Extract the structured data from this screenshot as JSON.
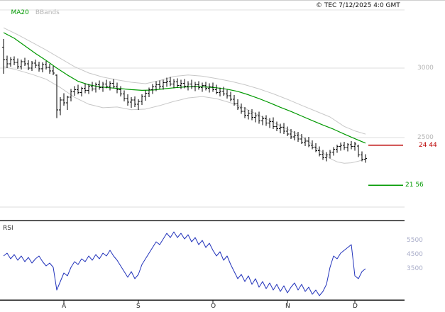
{
  "legend": {
    "ma": "MA20",
    "bands": "BBands"
  },
  "header": {
    "copyright": "© TEC 7/12/2025 4:0 GMT"
  },
  "chart_data": {
    "type": "candlestick",
    "title": "",
    "colors": {
      "grid": "#dcdcdc",
      "frame": "#e0e0e0",
      "bands": "#c8c8c8",
      "ma": "#009900",
      "candle": "#000000",
      "rsi": "#2233bb",
      "divider": "#1a1a1a",
      "resistance": "#bb0000",
      "support": "#009900"
    },
    "main": {
      "y_axis": {
        "visible_range": [
          1903,
          3484
        ],
        "gridline_spacing": 500
      },
      "price_gridlines": [
        3000,
        2500,
        2000
      ],
      "price_labels": [
        {
          "text": "3000",
          "value": 3000
        },
        {
          "text": "2500",
          "value": 2500
        }
      ],
      "levels": [
        {
          "text": "24 44",
          "value": 2444,
          "color": "#bb0000",
          "name": "resistance-level"
        },
        {
          "text": "21 56",
          "value": 2156,
          "color": "#009900",
          "name": "support-level"
        }
      ],
      "candles": [
        [
          3150,
          3210,
          2960,
          3060
        ],
        [
          3060,
          3090,
          3000,
          3030
        ],
        [
          3030,
          3080,
          3010,
          3060
        ],
        [
          3060,
          3085,
          3020,
          3040
        ],
        [
          3040,
          3070,
          2995,
          3010
        ],
        [
          3010,
          3060,
          2990,
          3045
        ],
        [
          3045,
          3075,
          3015,
          3030
        ],
        [
          3030,
          3055,
          2985,
          3000
        ],
        [
          3000,
          3050,
          2980,
          3035
        ],
        [
          3035,
          3060,
          3000,
          3020
        ],
        [
          3020,
          3045,
          2975,
          2995
        ],
        [
          2995,
          3040,
          2970,
          3025
        ],
        [
          3025,
          3050,
          2990,
          3005
        ],
        [
          3005,
          3030,
          2960,
          2980
        ],
        [
          2980,
          3015,
          2950,
          2965
        ],
        [
          2950,
          2955,
          2640,
          2700
        ],
        [
          2700,
          2790,
          2660,
          2770
        ],
        [
          2770,
          2820,
          2730,
          2750
        ],
        [
          2750,
          2800,
          2700,
          2790
        ],
        [
          2790,
          2850,
          2760,
          2830
        ],
        [
          2830,
          2870,
          2800,
          2845
        ],
        [
          2845,
          2880,
          2810,
          2825
        ],
        [
          2825,
          2865,
          2795,
          2855
        ],
        [
          2855,
          2890,
          2820,
          2840
        ],
        [
          2840,
          2885,
          2815,
          2870
        ],
        [
          2870,
          2900,
          2835,
          2850
        ],
        [
          2850,
          2895,
          2825,
          2880
        ],
        [
          2880,
          2910,
          2845,
          2860
        ],
        [
          2860,
          2900,
          2830,
          2885
        ],
        [
          2885,
          2915,
          2855,
          2870
        ],
        [
          2870,
          2905,
          2840,
          2890
        ],
        [
          2890,
          2920,
          2855,
          2865
        ],
        [
          2865,
          2895,
          2820,
          2845
        ],
        [
          2845,
          2870,
          2795,
          2815
        ],
        [
          2815,
          2840,
          2760,
          2780
        ],
        [
          2780,
          2810,
          2730,
          2755
        ],
        [
          2755,
          2790,
          2715,
          2770
        ],
        [
          2770,
          2795,
          2720,
          2740
        ],
        [
          2740,
          2775,
          2700,
          2760
        ],
        [
          2760,
          2810,
          2735,
          2795
        ],
        [
          2795,
          2840,
          2765,
          2820
        ],
        [
          2820,
          2860,
          2790,
          2845
        ],
        [
          2845,
          2885,
          2815,
          2865
        ],
        [
          2865,
          2905,
          2835,
          2880
        ],
        [
          2880,
          2910,
          2850,
          2870
        ],
        [
          2870,
          2915,
          2845,
          2895
        ],
        [
          2895,
          2930,
          2865,
          2905
        ],
        [
          2905,
          2935,
          2870,
          2885
        ],
        [
          2885,
          2920,
          2855,
          2900
        ],
        [
          2900,
          2925,
          2860,
          2875
        ],
        [
          2875,
          2915,
          2850,
          2890
        ],
        [
          2890,
          2920,
          2855,
          2870
        ],
        [
          2870,
          2905,
          2840,
          2885
        ],
        [
          2885,
          2915,
          2850,
          2865
        ],
        [
          2865,
          2900,
          2835,
          2880
        ],
        [
          2880,
          2905,
          2845,
          2860
        ],
        [
          2860,
          2895,
          2830,
          2875
        ],
        [
          2875,
          2900,
          2840,
          2855
        ],
        [
          2855,
          2890,
          2825,
          2865
        ],
        [
          2865,
          2895,
          2830,
          2845
        ],
        [
          2845,
          2880,
          2810,
          2825
        ],
        [
          2825,
          2860,
          2795,
          2835
        ],
        [
          2835,
          2865,
          2800,
          2815
        ],
        [
          2815,
          2845,
          2780,
          2800
        ],
        [
          2800,
          2830,
          2760,
          2775
        ],
        [
          2775,
          2805,
          2730,
          2745
        ],
        [
          2745,
          2775,
          2700,
          2715
        ],
        [
          2715,
          2745,
          2670,
          2690
        ],
        [
          2690,
          2720,
          2640,
          2660
        ],
        [
          2660,
          2700,
          2630,
          2675
        ],
        [
          2675,
          2705,
          2625,
          2645
        ],
        [
          2645,
          2680,
          2610,
          2655
        ],
        [
          2655,
          2685,
          2600,
          2620
        ],
        [
          2620,
          2655,
          2590,
          2635
        ],
        [
          2635,
          2660,
          2585,
          2605
        ],
        [
          2605,
          2640,
          2570,
          2615
        ],
        [
          2615,
          2645,
          2560,
          2580
        ],
        [
          2580,
          2615,
          2545,
          2565
        ],
        [
          2565,
          2600,
          2530,
          2575
        ],
        [
          2575,
          2605,
          2525,
          2545
        ],
        [
          2545,
          2580,
          2510,
          2525
        ],
        [
          2525,
          2560,
          2490,
          2505
        ],
        [
          2505,
          2545,
          2480,
          2515
        ],
        [
          2515,
          2540,
          2470,
          2490
        ],
        [
          2490,
          2525,
          2455,
          2465
        ],
        [
          2465,
          2500,
          2440,
          2475
        ],
        [
          2475,
          2505,
          2430,
          2445
        ],
        [
          2445,
          2480,
          2415,
          2425
        ],
        [
          2425,
          2460,
          2395,
          2405
        ],
        [
          2405,
          2435,
          2365,
          2380
        ],
        [
          2380,
          2410,
          2340,
          2355
        ],
        [
          2355,
          2395,
          2330,
          2375
        ],
        [
          2375,
          2410,
          2350,
          2395
        ],
        [
          2395,
          2430,
          2370,
          2415
        ],
        [
          2415,
          2450,
          2390,
          2435
        ],
        [
          2435,
          2465,
          2405,
          2445
        ],
        [
          2445,
          2470,
          2410,
          2425
        ],
        [
          2425,
          2460,
          2400,
          2450
        ],
        [
          2450,
          2475,
          2415,
          2435
        ],
        [
          2435,
          2470,
          2405,
          2455
        ],
        [
          2440,
          2450,
          2360,
          2375
        ],
        [
          2375,
          2400,
          2330,
          2345
        ],
        [
          2345,
          2380,
          2320,
          2350
        ]
      ],
      "ma20": [
        [
          0,
          3255
        ],
        [
          3,
          3215
        ],
        [
          6,
          3160
        ],
        [
          9,
          3105
        ],
        [
          12,
          3055
        ],
        [
          15,
          3000
        ],
        [
          18,
          2950
        ],
        [
          21,
          2905
        ],
        [
          24,
          2880
        ],
        [
          27,
          2865
        ],
        [
          30,
          2858
        ],
        [
          33,
          2852
        ],
        [
          36,
          2845
        ],
        [
          39,
          2840
        ],
        [
          42,
          2842
        ],
        [
          45,
          2850
        ],
        [
          48,
          2858
        ],
        [
          51,
          2864
        ],
        [
          54,
          2866
        ],
        [
          57,
          2864
        ],
        [
          60,
          2858
        ],
        [
          63,
          2848
        ],
        [
          66,
          2832
        ],
        [
          69,
          2808
        ],
        [
          72,
          2780
        ],
        [
          75,
          2750
        ],
        [
          78,
          2718
        ],
        [
          81,
          2688
        ],
        [
          84,
          2655
        ],
        [
          87,
          2622
        ],
        [
          90,
          2590
        ],
        [
          93,
          2560
        ],
        [
          96,
          2525
        ],
        [
          99,
          2492
        ],
        [
          102,
          2460
        ]
      ],
      "bb_upper": [
        [
          0,
          3290
        ],
        [
          4,
          3240
        ],
        [
          8,
          3185
        ],
        [
          12,
          3130
        ],
        [
          16,
          3070
        ],
        [
          20,
          3010
        ],
        [
          24,
          2965
        ],
        [
          28,
          2935
        ],
        [
          32,
          2915
        ],
        [
          36,
          2898
        ],
        [
          40,
          2888
        ],
        [
          44,
          2910
        ],
        [
          48,
          2940
        ],
        [
          52,
          2950
        ],
        [
          56,
          2942
        ],
        [
          60,
          2925
        ],
        [
          64,
          2905
        ],
        [
          68,
          2880
        ],
        [
          72,
          2850
        ],
        [
          76,
          2815
        ],
        [
          80,
          2775
        ],
        [
          84,
          2732
        ],
        [
          88,
          2690
        ],
        [
          92,
          2648
        ],
        [
          96,
          2580
        ],
        [
          99,
          2548
        ],
        [
          102,
          2525
        ]
      ],
      "bb_lower": [
        [
          0,
          3010
        ],
        [
          4,
          2985
        ],
        [
          8,
          2955
        ],
        [
          12,
          2920
        ],
        [
          16,
          2860
        ],
        [
          20,
          2790
        ],
        [
          24,
          2740
        ],
        [
          28,
          2715
        ],
        [
          32,
          2720
        ],
        [
          36,
          2700
        ],
        [
          40,
          2705
        ],
        [
          44,
          2730
        ],
        [
          48,
          2760
        ],
        [
          52,
          2785
        ],
        [
          56,
          2795
        ],
        [
          60,
          2780
        ],
        [
          64,
          2750
        ],
        [
          68,
          2710
        ],
        [
          72,
          2660
        ],
        [
          76,
          2610
        ],
        [
          80,
          2560
        ],
        [
          84,
          2510
        ],
        [
          88,
          2430
        ],
        [
          92,
          2350
        ],
        [
          94,
          2325
        ],
        [
          96,
          2315
        ],
        [
          98,
          2318
        ],
        [
          100,
          2330
        ],
        [
          102,
          2345
        ]
      ]
    },
    "rsi": {
      "label": "RSI",
      "axis_labels": [
        {
          "text": "5500",
          "value": 55
        },
        {
          "text": "4500",
          "value": 45
        },
        {
          "text": "3500",
          "value": 35
        }
      ],
      "values": [
        44,
        46,
        42,
        45,
        41,
        44,
        40,
        43,
        39,
        42,
        44,
        40,
        37,
        39,
        36,
        20,
        26,
        32,
        30,
        36,
        40,
        38,
        42,
        40,
        44,
        41,
        45,
        42,
        46,
        44,
        48,
        44,
        41,
        37,
        33,
        29,
        33,
        28,
        31,
        38,
        42,
        46,
        50,
        54,
        52,
        56,
        60,
        57,
        61,
        57,
        60,
        56,
        59,
        54,
        57,
        52,
        55,
        50,
        53,
        48,
        44,
        47,
        41,
        44,
        38,
        33,
        28,
        31,
        26,
        30,
        24,
        28,
        22,
        26,
        21,
        25,
        20,
        24,
        19,
        23,
        18,
        22,
        25,
        20,
        24,
        19,
        22,
        17,
        20,
        16,
        19,
        24,
        36,
        44,
        42,
        46,
        48,
        50,
        52,
        30,
        28,
        33,
        35
      ]
    },
    "months": [
      {
        "label": "A",
        "index": 17
      },
      {
        "label": "S",
        "index": 38
      },
      {
        "label": "O",
        "index": 59
      },
      {
        "label": "N",
        "index": 80
      },
      {
        "label": "D",
        "index": 99
      }
    ]
  }
}
